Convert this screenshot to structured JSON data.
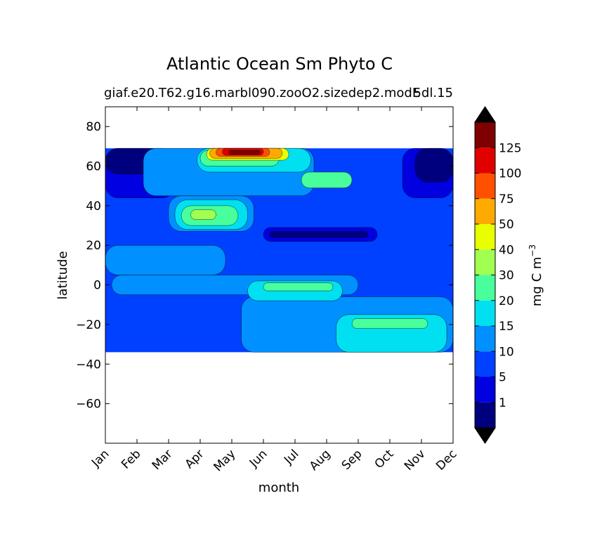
{
  "chart_data": {
    "type": "heatmap",
    "title": "Atlantic Ocean Sm Phyto C",
    "subtitle": "giaf.e20.T62.g16.marbl090.zooO2.sizedep2.modE",
    "subtitle_right": "5dl.15",
    "xlabel": "month",
    "ylabel": "latitude",
    "x_categories": [
      "Jan",
      "Feb",
      "Mar",
      "Apr",
      "May",
      "Jun",
      "Jul",
      "Aug",
      "Sep",
      "Oct",
      "Nov",
      "Dec"
    ],
    "ylim": [
      -80,
      90
    ],
    "y_ticks": [
      -60,
      -40,
      -20,
      0,
      20,
      40,
      60,
      80
    ],
    "data_lat_range": [
      -34,
      69
    ],
    "grid": false,
    "colorbar": {
      "label": "mg C m",
      "label_exponent": "−3",
      "levels": [
        0,
        1,
        5,
        10,
        15,
        20,
        30,
        40,
        50,
        75,
        100,
        125,
        150
      ],
      "tick_labels": [
        "1",
        "5",
        "10",
        "15",
        "20",
        "30",
        "40",
        "50",
        "75",
        "100",
        "125"
      ],
      "colors": [
        "#00007f",
        "#0000e0",
        "#0040ff",
        "#0090ff",
        "#00e0f0",
        "#48ff9c",
        "#a0ff50",
        "#e8ff00",
        "#ffaa00",
        "#ff5000",
        "#e00000",
        "#7f0000"
      ],
      "extend": "both"
    },
    "regions": [
      {
        "level": 2,
        "x": [
          0,
          11
        ],
        "y": [
          -34,
          69
        ],
        "note": "background 5-10"
      },
      {
        "level": 1,
        "x": [
          0,
          2.2
        ],
        "y": [
          44,
          69
        ]
      },
      {
        "level": 0,
        "x": [
          0,
          1.8
        ],
        "y": [
          56,
          69
        ]
      },
      {
        "level": 1,
        "x": [
          9.4,
          11
        ],
        "y": [
          44,
          69
        ]
      },
      {
        "level": 0,
        "x": [
          9.8,
          11
        ],
        "y": [
          52,
          69
        ]
      },
      {
        "level": 1,
        "x": [
          5.0,
          8.6
        ],
        "y": [
          22,
          29
        ]
      },
      {
        "level": 0,
        "x": [
          5.2,
          8.3
        ],
        "y": [
          24,
          27
        ]
      },
      {
        "level": 3,
        "x": [
          0,
          3.8
        ],
        "y": [
          5,
          20
        ]
      },
      {
        "level": 3,
        "x": [
          0.2,
          8.0
        ],
        "y": [
          -5,
          5
        ]
      },
      {
        "level": 3,
        "x": [
          4.3,
          11
        ],
        "y": [
          -34,
          -6
        ]
      },
      {
        "level": 3,
        "x": [
          2.0,
          4.7
        ],
        "y": [
          27,
          45
        ]
      },
      {
        "level": 3,
        "x": [
          1.2,
          6.6
        ],
        "y": [
          45,
          69
        ]
      },
      {
        "level": 4,
        "x": [
          2.2,
          4.5
        ],
        "y": [
          28,
          43
        ]
      },
      {
        "level": 4,
        "x": [
          2.9,
          6.5
        ],
        "y": [
          57,
          69
        ]
      },
      {
        "level": 4,
        "x": [
          4.5,
          7.5
        ],
        "y": [
          -8,
          2
        ]
      },
      {
        "level": 4,
        "x": [
          7.3,
          10.8
        ],
        "y": [
          -34,
          -15
        ]
      },
      {
        "level": 5,
        "x": [
          2.4,
          4.2
        ],
        "y": [
          30,
          40
        ]
      },
      {
        "level": 5,
        "x": [
          6.2,
          7.8
        ],
        "y": [
          49,
          57
        ]
      },
      {
        "level": 5,
        "x": [
          5.0,
          7.2
        ],
        "y": [
          -3,
          1
        ]
      },
      {
        "level": 5,
        "x": [
          7.8,
          10.2
        ],
        "y": [
          -22,
          -17
        ]
      },
      {
        "level": 5,
        "x": [
          3.0,
          5.5
        ],
        "y": [
          60,
          68
        ]
      },
      {
        "level": 6,
        "x": [
          2.7,
          3.5
        ],
        "y": [
          33,
          38
        ]
      },
      {
        "level": 7,
        "x": [
          3.2,
          5.8
        ],
        "y": [
          63,
          69
        ]
      },
      {
        "level": 8,
        "x": [
          3.3,
          5.6
        ],
        "y": [
          64,
          69
        ]
      },
      {
        "level": 9,
        "x": [
          3.5,
          5.2
        ],
        "y": [
          65,
          69
        ]
      },
      {
        "level": 10,
        "x": [
          3.7,
          5.0
        ],
        "y": [
          65.5,
          69
        ]
      },
      {
        "level": 11,
        "x": [
          3.9,
          4.9
        ],
        "y": [
          66,
          68
        ]
      }
    ]
  }
}
